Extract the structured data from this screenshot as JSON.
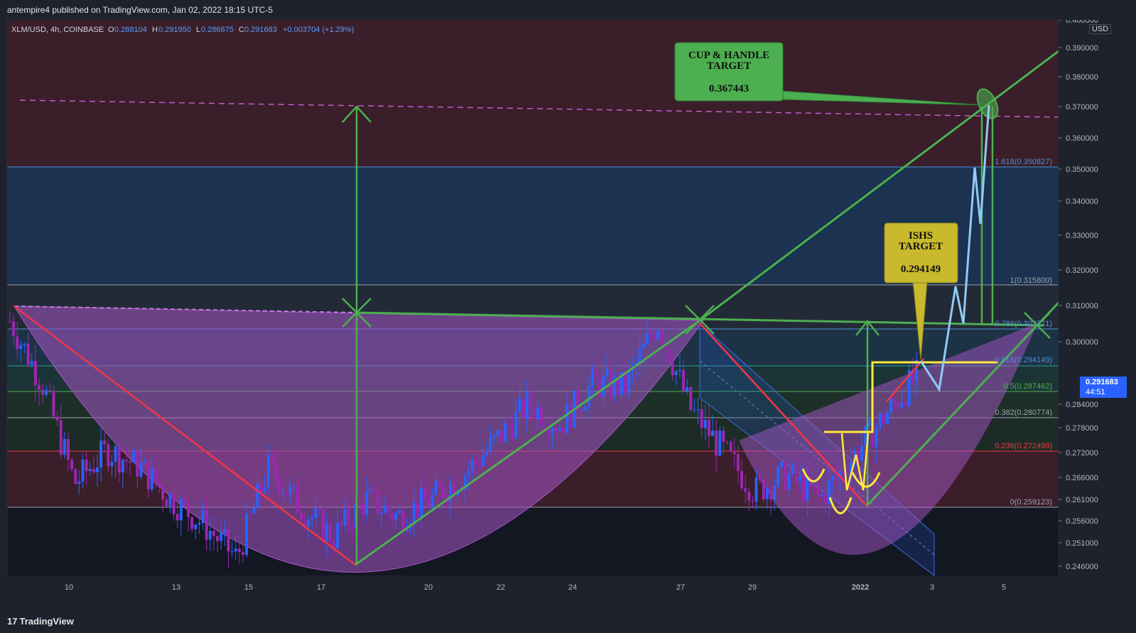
{
  "header": {
    "published": "antempire4 published on TradingView.com, Jan 02, 2022 18:15 UTC-5"
  },
  "legend": {
    "symbol": "XLM/USD, 4h, COINBASE",
    "o_label": "O",
    "o": "0.288104",
    "h_label": "H",
    "h": "0.291950",
    "l_label": "L",
    "l": "0.286875",
    "c_label": "C",
    "c": "0.291683",
    "change": "+0.003704 (+1.29%)"
  },
  "footer": {
    "brand_mark": "17",
    "brand": "TradingView"
  },
  "price_axis": {
    "currency": "USD",
    "current_price": "0.291683",
    "countdown": "44:51",
    "ticks": [
      "0.400000",
      "0.390000",
      "0.380000",
      "0.370000",
      "0.360000",
      "0.350000",
      "0.340000",
      "0.330000",
      "0.320000",
      "0.310000",
      "0.300000",
      "0.284000",
      "0.278000",
      "0.272000",
      "0.266000",
      "0.261000",
      "0.256000",
      "0.251000",
      "0.246000"
    ]
  },
  "time_axis": {
    "ticks": [
      "10",
      "13",
      "15",
      "17",
      "20",
      "22",
      "24",
      "27",
      "29",
      "2022",
      "3",
      "5"
    ]
  },
  "fib_levels": [
    {
      "label": "1.618(0.350827)",
      "color": "#4f8fd6"
    },
    {
      "label": "1(0.315800)",
      "color": "#9aa0ad"
    },
    {
      "label": "0.786(0.303771)",
      "color": "#4f8fd6"
    },
    {
      "label": "0.618(0.294149)",
      "color": "#4f8fd6"
    },
    {
      "label": "0.5(0.287462)",
      "color": "#4caf50"
    },
    {
      "label": "0.382(0.280774)",
      "color": "#9aa0ad"
    },
    {
      "label": "0.236(0.272499)",
      "color": "#f23645"
    },
    {
      "label": "0(0.259123)",
      "color": "#9aa0ad"
    }
  ],
  "annotations": {
    "cup_handle": {
      "line1": "CUP & HANDLE",
      "line2": "TARGET",
      "value": "0.367443",
      "color": "#4caf50"
    },
    "ishs": {
      "line1": "ISHS",
      "line2": "TARGET",
      "value": "0.294149",
      "color": "#c9b92c"
    }
  },
  "colors": {
    "candle_up": "#2962ff",
    "candle_down": "#9c27b0",
    "cup_fill": "#a855c8",
    "trend_green": "#4caf50",
    "trend_red": "#f23645",
    "projection": "#90caf9",
    "ishs_yellow": "#ffeb3b"
  },
  "chart_data": {
    "type": "candlestick",
    "symbol": "XLM/USD",
    "timeframe": "4h",
    "exchange": "COINBASE",
    "ylim": [
      0.243,
      0.402
    ],
    "x_ticks": [
      "10",
      "13",
      "15",
      "17",
      "20",
      "22",
      "24",
      "27",
      "29",
      "2022",
      "3",
      "5"
    ],
    "close_path_approx": [
      {
        "date": "Dec 08",
        "close": 0.305
      },
      {
        "date": "Dec 09",
        "close": 0.29
      },
      {
        "date": "Dec 10",
        "close": 0.266
      },
      {
        "date": "Dec 11",
        "close": 0.274
      },
      {
        "date": "Dec 12",
        "close": 0.27
      },
      {
        "date": "Dec 13",
        "close": 0.262
      },
      {
        "date": "Dec 14",
        "close": 0.256
      },
      {
        "date": "Dec 15",
        "close": 0.248
      },
      {
        "date": "Dec 15",
        "close": 0.27
      },
      {
        "date": "Dec 16",
        "close": 0.26
      },
      {
        "date": "Dec 17",
        "close": 0.253
      },
      {
        "date": "Dec 18",
        "close": 0.262
      },
      {
        "date": "Dec 19",
        "close": 0.258
      },
      {
        "date": "Dec 20",
        "close": 0.262
      },
      {
        "date": "Dec 21",
        "close": 0.268
      },
      {
        "date": "Dec 22",
        "close": 0.276
      },
      {
        "date": "Dec 23",
        "close": 0.285
      },
      {
        "date": "Dec 24",
        "close": 0.28
      },
      {
        "date": "Dec 25",
        "close": 0.29
      },
      {
        "date": "Dec 26",
        "close": 0.289
      },
      {
        "date": "Dec 27",
        "close": 0.305
      },
      {
        "date": "Dec 28",
        "close": 0.284
      },
      {
        "date": "Dec 29",
        "close": 0.274
      },
      {
        "date": "Dec 30",
        "close": 0.264
      },
      {
        "date": "Dec 31",
        "close": 0.268
      },
      {
        "date": "Jan 01",
        "close": 0.262
      },
      {
        "date": "Jan 01",
        "close": 0.272
      },
      {
        "date": "Jan 02",
        "close": 0.282
      },
      {
        "date": "Jan 02",
        "close": 0.2917
      }
    ],
    "fib_retracement": [
      {
        "level": 1.618,
        "price": 0.350827
      },
      {
        "level": 1,
        "price": 0.3158
      },
      {
        "level": 0.786,
        "price": 0.303771
      },
      {
        "level": 0.618,
        "price": 0.294149
      },
      {
        "level": 0.5,
        "price": 0.287462
      },
      {
        "level": 0.382,
        "price": 0.280774
      },
      {
        "level": 0.236,
        "price": 0.272499
      },
      {
        "level": 0,
        "price": 0.259123
      }
    ],
    "targets": {
      "cup_and_handle": 0.367443,
      "ishs": 0.294149
    }
  }
}
